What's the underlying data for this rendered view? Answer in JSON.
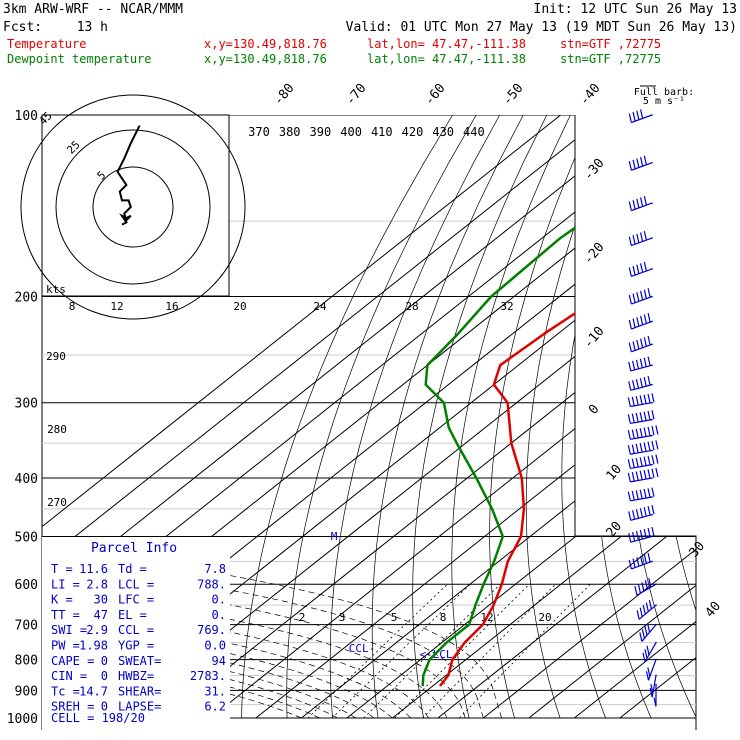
{
  "header": {
    "model": "3km ARW-WRF -- NCAR/MMM",
    "init": "Init: 12 UTC Sun 26 May 13",
    "fcst_label": "Fcst:",
    "fcst_value": "13 h",
    "valid": "Valid: 01 UTC Mon 27 May 13 (19 MDT Sun 26 May 13)",
    "rows": [
      {
        "name": "Temperature",
        "xy": "x,y=130.49,818.76",
        "latlon": "lat,lon= 47.47,-111.38",
        "stn": "stn=GTF ,72775",
        "color": "#e00000"
      },
      {
        "name": "Dewpoint temperature",
        "xy": "x,y=130.49,818.76",
        "latlon": "lat,lon= 47.47,-111.38",
        "stn": "stn=GTF ,72775",
        "color": "#008000"
      }
    ]
  },
  "barb_legend": {
    "title": "Full barb:",
    "value": "5 m s⁻¹"
  },
  "chart_data": {
    "type": "line",
    "title": "",
    "y_axis": "pressure (hPa), log scale",
    "pressure_ticks": [
      100,
      200,
      300,
      400,
      500,
      600,
      700,
      800,
      900,
      1000
    ],
    "isotherm_labels_top": [
      "-80",
      "-70",
      "-60",
      "-50",
      "-40"
    ],
    "isotherm_labels_right": [
      "-30",
      "-20",
      "-10",
      "0",
      "10",
      "20",
      "30",
      "40"
    ],
    "theta_e_labels": [
      "370",
      "380",
      "390",
      "400",
      "410",
      "420",
      "430",
      "440"
    ],
    "dry_adiabat_labels": [
      "290",
      "280",
      "270"
    ],
    "mixing_ratio_labels": [
      "2",
      "3",
      "5",
      "8",
      "12",
      "20"
    ],
    "series": [
      {
        "name": "Temperature",
        "color": "#e00000",
        "unit": "°C",
        "points": [
          {
            "p": 100,
            "t": -52
          },
          {
            "p": 120,
            "t": -55
          },
          {
            "p": 150,
            "t": -58
          },
          {
            "p": 170,
            "t": -59
          },
          {
            "p": 200,
            "t": -61
          },
          {
            "p": 230,
            "t": -63
          },
          {
            "p": 260,
            "t": -64
          },
          {
            "p": 280,
            "t": -60
          },
          {
            "p": 300,
            "t": -52
          },
          {
            "p": 350,
            "t": -40
          },
          {
            "p": 400,
            "t": -28
          },
          {
            "p": 450,
            "t": -19
          },
          {
            "p": 500,
            "t": -12
          },
          {
            "p": 550,
            "t": -8
          },
          {
            "p": 600,
            "t": -3
          },
          {
            "p": 650,
            "t": 1
          },
          {
            "p": 700,
            "t": 4
          },
          {
            "p": 750,
            "t": 5
          },
          {
            "p": 800,
            "t": 7
          },
          {
            "p": 850,
            "t": 10.5
          },
          {
            "p": 885,
            "t": 11.6
          }
        ]
      },
      {
        "name": "Dewpoint temperature",
        "color": "#008000",
        "unit": "°C",
        "points": [
          {
            "p": 100,
            "t": -82
          },
          {
            "p": 130,
            "t": -84
          },
          {
            "p": 160,
            "t": -86
          },
          {
            "p": 200,
            "t": -85
          },
          {
            "p": 230,
            "t": -82
          },
          {
            "p": 260,
            "t": -80
          },
          {
            "p": 280,
            "t": -75
          },
          {
            "p": 300,
            "t": -66
          },
          {
            "p": 330,
            "t": -58
          },
          {
            "p": 350,
            "t": -52
          },
          {
            "p": 400,
            "t": -38
          },
          {
            "p": 450,
            "t": -26
          },
          {
            "p": 500,
            "t": -16
          },
          {
            "p": 550,
            "t": -11
          },
          {
            "p": 600,
            "t": -7
          },
          {
            "p": 650,
            "t": -3
          },
          {
            "p": 700,
            "t": 1
          },
          {
            "p": 750,
            "t": 1
          },
          {
            "p": 800,
            "t": 2
          },
          {
            "p": 850,
            "t": 5
          },
          {
            "p": 885,
            "t": 7.8
          }
        ]
      }
    ],
    "markers": [
      "M",
      "CCL",
      "LCL"
    ],
    "hodograph": {
      "ring_labels": [
        "5",
        "25",
        "45"
      ],
      "unit_label": "kts",
      "points": [
        [
          -3,
          10
        ],
        [
          -6,
          7
        ],
        [
          -5,
          3
        ],
        [
          -2,
          3
        ],
        [
          -1,
          0
        ],
        [
          -4,
          -3
        ],
        [
          -3,
          -6
        ],
        [
          -1,
          -4
        ],
        [
          -3,
          -5
        ],
        [
          -5,
          -4
        ],
        [
          -3,
          -7
        ],
        [
          -5,
          -8
        ]
      ],
      "upper_points": [
        [
          -5,
          13
        ],
        [
          -7,
          16
        ],
        [
          -4,
          22
        ],
        [
          -1,
          29
        ],
        [
          3,
          37
        ]
      ]
    },
    "wind_barbs": {
      "pressures": [
        100,
        120,
        140,
        160,
        180,
        200,
        220,
        240,
        260,
        280,
        300,
        320,
        340,
        360,
        380,
        400,
        430,
        460,
        500,
        550,
        600,
        650,
        700,
        750,
        800,
        850,
        880
      ],
      "speed_ms": [
        20,
        25,
        25,
        25,
        25,
        30,
        30,
        30,
        30,
        30,
        35,
        35,
        40,
        40,
        40,
        40,
        35,
        35,
        35,
        30,
        25,
        25,
        20,
        15,
        10,
        10,
        5
      ],
      "dir_deg": [
        250,
        250,
        250,
        250,
        250,
        250,
        250,
        250,
        255,
        255,
        260,
        260,
        260,
        260,
        260,
        260,
        260,
        255,
        255,
        250,
        240,
        230,
        220,
        210,
        200,
        190,
        180
      ]
    }
  },
  "parcel_info": {
    "title": "Parcel Info",
    "rows": [
      [
        "T  =",
        "11.6",
        "Td =",
        "7.8"
      ],
      [
        "LI =",
        "2.8",
        "LCL =",
        "788."
      ],
      [
        "K  =",
        "30",
        "LFC =",
        "0."
      ],
      [
        "TT =",
        "47",
        "EL  =",
        "0."
      ],
      [
        "SWI =",
        "2.9",
        "CCL =",
        "769."
      ],
      [
        "PW =",
        "1.98",
        "YGP =",
        "0.0"
      ],
      [
        "CAPE =",
        "0",
        "SWEAT=",
        "94"
      ],
      [
        "CIN =",
        "0",
        "HWBZ=",
        "2783."
      ],
      [
        "Tc =",
        "14.7",
        "SHEAR=",
        "31."
      ],
      [
        "SREH =",
        "0",
        "LAPSE=",
        "6.2"
      ]
    ],
    "cell": "CELL = 198/20"
  },
  "colors": {
    "temperature": "#e00000",
    "dewpoint": "#008000",
    "grid": "#000000",
    "info": "#0000cc",
    "isotherm_gray": "#cccccc"
  }
}
